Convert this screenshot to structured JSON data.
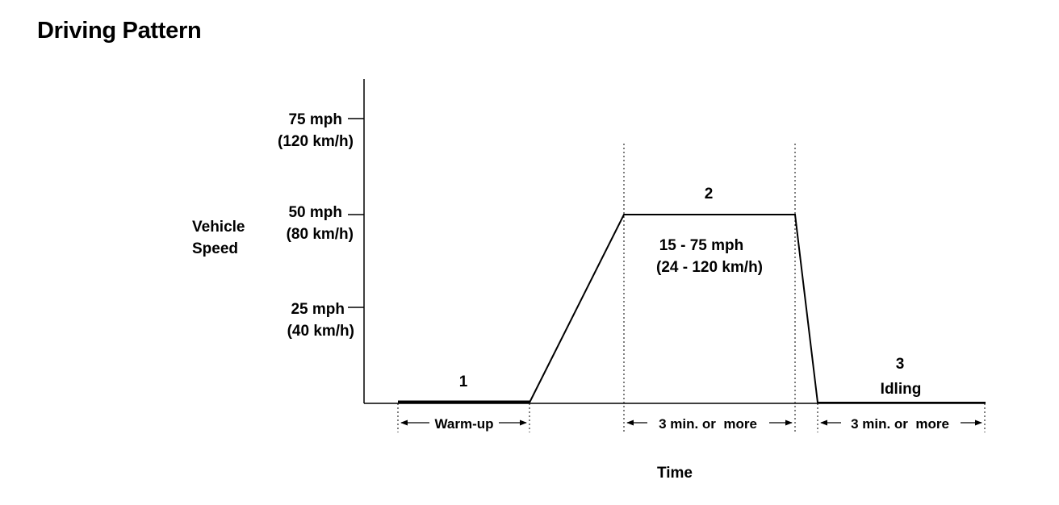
{
  "title": "Driving Pattern",
  "y_axis": {
    "label_line1": "Vehicle",
    "label_line2": "Speed",
    "ticks": [
      {
        "mph": "75 mph",
        "kmh": "(120 km/h)"
      },
      {
        "mph": "50 mph",
        "kmh": "(80 km/h)"
      },
      {
        "mph": "25 mph",
        "kmh": "(40 km/h)"
      }
    ]
  },
  "x_axis": {
    "label": "Time"
  },
  "phases": {
    "p1": {
      "number": "1",
      "duration": "Warm-up"
    },
    "p2": {
      "number": "2",
      "range_mph": "15 - 75 mph",
      "range_kmh": "(24 - 120 km/h)",
      "duration": "3 min. or  more"
    },
    "p3": {
      "number": "3",
      "name": "Idling",
      "duration": "3 min. or  more"
    }
  }
}
